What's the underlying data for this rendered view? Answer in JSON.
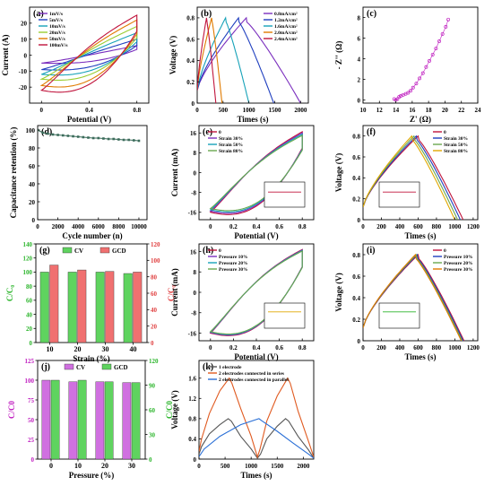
{
  "figure": {
    "colors": {
      "axis": "#000000",
      "frame": "#000000"
    }
  },
  "chart_data": [
    {
      "id": "a",
      "panel_label": "(a)",
      "type": "line",
      "xlabel": "Potential (V)",
      "ylabel": "Current (A)",
      "xlim": [
        -0.1,
        0.9
      ],
      "ylim": [
        -30,
        30
      ],
      "xticks": [
        0.0,
        0.4,
        0.8
      ],
      "yticks": [
        -20,
        -10,
        0,
        10,
        20
      ],
      "legend_position": "top-left",
      "series": [
        {
          "name": "1mV/s",
          "color": "#7b2fbe",
          "shape": "cv",
          "imax": 6,
          "imin": -5,
          "pinch": 0.7
        },
        {
          "name": "5mV/s",
          "color": "#1f3fbf",
          "shape": "cv",
          "imax": 10,
          "imin": -9,
          "pinch": 0.6
        },
        {
          "name": "10mV/s",
          "color": "#17a2b8",
          "shape": "cv",
          "imax": 14,
          "imin": -12,
          "pinch": 0.55
        },
        {
          "name": "20mV/s",
          "color": "#9acd32",
          "shape": "cv",
          "imax": 18,
          "imin": -15,
          "pinch": 0.5
        },
        {
          "name": "50mV/s",
          "color": "#e07b00",
          "shape": "cv",
          "imax": 22,
          "imin": -19,
          "pinch": 0.45
        },
        {
          "name": "100mV/s",
          "color": "#c0143c",
          "shape": "cv",
          "imax": 25,
          "imin": -22,
          "pinch": 0.4
        }
      ]
    },
    {
      "id": "b",
      "panel_label": "(b)",
      "type": "line",
      "xlabel": "Times (s)",
      "ylabel": "Voltage (V)",
      "xlim": [
        0,
        2150
      ],
      "ylim": [
        0,
        0.9
      ],
      "xticks": [
        0,
        500,
        1000,
        1500,
        2000
      ],
      "yticks": [
        0.0,
        0.2,
        0.4,
        0.6,
        0.8
      ],
      "legend_position": "top-right",
      "series": [
        {
          "name": "0.8mA/cm²",
          "color": "#7b2fbe",
          "shape": "gcd",
          "t_peak": 950,
          "t_end": 2000
        },
        {
          "name": "1.2mA/cm²",
          "color": "#1f3fbf",
          "shape": "gcd",
          "t_peak": 800,
          "t_end": 1480
        },
        {
          "name": "1.6mA/cm²",
          "color": "#17a2b8",
          "shape": "gcd",
          "t_peak": 550,
          "t_end": 1000
        },
        {
          "name": "2.0mA/cm²",
          "color": "#e07b00",
          "shape": "gcd",
          "t_peak": 280,
          "t_end": 480
        },
        {
          "name": "2.4mA/cm²",
          "color": "#c0143c",
          "shape": "gcd",
          "t_peak": 180,
          "t_end": 360
        }
      ]
    },
    {
      "id": "c",
      "panel_label": "(c)",
      "type": "scatter",
      "xlabel": "Z' (Ω)",
      "ylabel": "- Z'' (Ω)",
      "xlim": [
        10,
        24
      ],
      "ylim": [
        -0.3,
        9
      ],
      "xticks": [
        10,
        12,
        14,
        16,
        18,
        20,
        22,
        24
      ],
      "yticks": [
        0,
        2,
        4,
        6,
        8
      ],
      "series": [
        {
          "name": "",
          "color": "#c020c0",
          "marker": "circle",
          "points": [
            [
              13.8,
              0.1
            ],
            [
              14.0,
              0.0
            ],
            [
              14.2,
              0.1
            ],
            [
              14.4,
              0.3
            ],
            [
              14.6,
              0.4
            ],
            [
              14.9,
              0.5
            ],
            [
              15.2,
              0.6
            ],
            [
              15.5,
              0.7
            ],
            [
              15.8,
              0.9
            ],
            [
              16.1,
              1.2
            ],
            [
              16.5,
              1.6
            ],
            [
              16.9,
              2.1
            ],
            [
              17.3,
              2.6
            ],
            [
              17.7,
              3.2
            ],
            [
              18.1,
              3.8
            ],
            [
              18.5,
              4.4
            ],
            [
              18.9,
              5.0
            ],
            [
              19.3,
              5.7
            ],
            [
              19.7,
              6.4
            ],
            [
              20.1,
              7.1
            ],
            [
              20.4,
              7.8
            ]
          ]
        }
      ]
    },
    {
      "id": "d",
      "panel_label": "(d)",
      "type": "line",
      "xlabel": "Cycle number (n)",
      "ylabel": "Capacitance retention (%)",
      "xlim": [
        0,
        10800
      ],
      "ylim": [
        0,
        105
      ],
      "xticks": [
        0,
        2000,
        4000,
        6000,
        8000,
        10000
      ],
      "yticks": [
        0,
        20,
        40,
        60,
        80,
        100
      ],
      "series": [
        {
          "name": "",
          "color": "#3a6b5a",
          "marker": "square",
          "x": [
            0,
            500,
            1000,
            1500,
            2000,
            2500,
            3000,
            3500,
            4000,
            4500,
            5000,
            5500,
            6000,
            6500,
            7000,
            7500,
            8000,
            8500,
            9000,
            9500,
            10000
          ],
          "y": [
            100,
            97,
            96,
            95,
            94.5,
            94,
            93.5,
            93,
            92.5,
            92,
            91.5,
            91,
            91,
            90.5,
            90,
            90,
            89.5,
            89,
            89,
            88.5,
            88
          ]
        }
      ]
    },
    {
      "id": "e",
      "panel_label": "(e)",
      "type": "line",
      "xlabel": "Potential (V)",
      "ylabel": "Current (mA)",
      "xlim": [
        -0.1,
        0.9
      ],
      "ylim": [
        -19,
        19
      ],
      "xticks": [
        0.0,
        0.2,
        0.4,
        0.6,
        0.8
      ],
      "yticks": [
        -16,
        -8,
        0,
        8,
        16
      ],
      "legend_position": "top-left",
      "series": [
        {
          "name": "0",
          "color": "#c0143c",
          "shape": "cv",
          "imax": 16.5,
          "imin": -16,
          "pinch": 0.35
        },
        {
          "name": "Strain 30%",
          "color": "#7b2fbe",
          "shape": "cv",
          "imax": 16,
          "imin": -15.5,
          "pinch": 0.35
        },
        {
          "name": "Strain 50%",
          "color": "#17a2b8",
          "shape": "cv",
          "imax": 15.5,
          "imin": -15,
          "pinch": 0.35
        },
        {
          "name": "Strain 80%",
          "color": "#6aa84f",
          "shape": "cv",
          "imax": 15,
          "imin": -14.5,
          "pinch": 0.35
        }
      ],
      "inset": {
        "type": "line",
        "position": "bottom-right",
        "xlim": [
          0,
          90
        ],
        "ylim": [
          0,
          2
        ],
        "y": 1.2,
        "color": "#c0143c"
      }
    },
    {
      "id": "f",
      "panel_label": "(f)",
      "type": "line",
      "xlabel": "Times (s)",
      "ylabel": "Voltage (V)",
      "xlim": [
        0,
        1250
      ],
      "ylim": [
        0,
        0.9
      ],
      "xticks": [
        0,
        200,
        400,
        600,
        800,
        1000,
        1200
      ],
      "yticks": [
        0.0,
        0.2,
        0.4,
        0.6,
        0.8
      ],
      "legend_position": "top-right",
      "series": [
        {
          "name": "0",
          "color": "#c0143c",
          "shape": "gcd",
          "t_peak": 600,
          "t_end": 1090
        },
        {
          "name": "Strain 30%",
          "color": "#1f3fbf",
          "shape": "gcd",
          "t_peak": 580,
          "t_end": 1060
        },
        {
          "name": "Strain 50%",
          "color": "#6aa84f",
          "shape": "gcd",
          "t_peak": 555,
          "t_end": 1030
        },
        {
          "name": "Strain 80%",
          "color": "#e0a800",
          "shape": "gcd",
          "t_peak": 530,
          "t_end": 1000
        }
      ],
      "inset": {
        "type": "line",
        "position": "bottom-left",
        "xlim": [
          0,
          90
        ],
        "ylim": [
          0,
          2
        ],
        "y": 1.2,
        "color": "#c0143c"
      }
    },
    {
      "id": "g",
      "panel_label": "(g)",
      "type": "bar",
      "xlabel": "Strain (%)",
      "ylabel": "C/C₀",
      "ylabel_right": "C/C₀",
      "categories": [
        "10",
        "20",
        "30",
        "40"
      ],
      "ylim": [
        0,
        140
      ],
      "ylim_right": [
        0,
        120
      ],
      "yticks": [
        0,
        20,
        40,
        60,
        80,
        100,
        120,
        140
      ],
      "yticks_right": [
        0,
        20,
        40,
        60,
        80,
        100,
        120
      ],
      "left_axis_color": "#2bb52b",
      "right_axis_color": "#e04040",
      "legend_position": "top",
      "series": [
        {
          "name": "CV",
          "color": "#5fd35f",
          "values": [
            100,
            100,
            100,
            98
          ]
        },
        {
          "name": "GCD",
          "color": "#f07070",
          "values": [
            110,
            103,
            101,
            100
          ]
        }
      ]
    },
    {
      "id": "h",
      "panel_label": "(h)",
      "type": "line",
      "xlabel": "Potential (V)",
      "ylabel": "Current (mA)",
      "xlim": [
        -0.1,
        0.9
      ],
      "ylim": [
        -19,
        19
      ],
      "xticks": [
        0.0,
        0.2,
        0.4,
        0.6,
        0.8
      ],
      "yticks": [
        -16,
        -8,
        0,
        8,
        16
      ],
      "legend_position": "top-left",
      "series": [
        {
          "name": "0",
          "color": "#c0143c",
          "shape": "cv",
          "imax": 16.8,
          "imin": -16,
          "pinch": 0.3
        },
        {
          "name": "Pressure 10%",
          "color": "#7b2fbe",
          "shape": "cv",
          "imax": 16.6,
          "imin": -15.8,
          "pinch": 0.3
        },
        {
          "name": "Pressure 20%",
          "color": "#17a2b8",
          "shape": "cv",
          "imax": 16.4,
          "imin": -15.6,
          "pinch": 0.3
        },
        {
          "name": "Pressure 30%",
          "color": "#6aa84f",
          "shape": "cv",
          "imax": 16.2,
          "imin": -15.4,
          "pinch": 0.3
        }
      ],
      "inset": {
        "type": "line",
        "position": "bottom-right",
        "xlim": [
          0,
          90
        ],
        "ylim": [
          0,
          2
        ],
        "y": 1.3,
        "color": "#e0a800"
      }
    },
    {
      "id": "i",
      "panel_label": "(i)",
      "type": "line",
      "xlabel": "Times (s)",
      "ylabel": "Voltage (V)",
      "xlim": [
        0,
        1250
      ],
      "ylim": [
        0,
        0.9
      ],
      "xticks": [
        0,
        200,
        400,
        600,
        800,
        1000,
        1200
      ],
      "yticks": [
        0.0,
        0.2,
        0.4,
        0.6,
        0.8
      ],
      "legend_position": "top-right",
      "series": [
        {
          "name": "0",
          "color": "#c0143c",
          "shape": "gcd",
          "t_peak": 600,
          "t_end": 1100
        },
        {
          "name": "Pressure 10%",
          "color": "#1f3fbf",
          "shape": "gcd",
          "t_peak": 590,
          "t_end": 1090
        },
        {
          "name": "Pressure 20%",
          "color": "#6aa84f",
          "shape": "gcd",
          "t_peak": 580,
          "t_end": 1080
        },
        {
          "name": "Pressure 30%",
          "color": "#e07b00",
          "shape": "gcd",
          "t_peak": 570,
          "t_end": 1070
        }
      ],
      "inset": {
        "type": "line",
        "position": "bottom-left",
        "xlim": [
          0,
          90
        ],
        "ylim": [
          0,
          2
        ],
        "y": 1.3,
        "color": "#2bb52b"
      }
    },
    {
      "id": "j",
      "panel_label": "(j)",
      "type": "bar",
      "xlabel": "Pressure (%)",
      "ylabel": "C/C0",
      "ylabel_right": "C/C0",
      "categories": [
        "0",
        "10",
        "20",
        "30"
      ],
      "ylim": [
        0,
        125
      ],
      "ylim_right": [
        0,
        120
      ],
      "yticks": [
        0,
        25,
        50,
        75,
        100,
        125
      ],
      "yticks_right": [
        0,
        30,
        60,
        90,
        120
      ],
      "left_axis_color": "#c020c0",
      "right_axis_color": "#2bb52b",
      "legend_position": "top",
      "series": [
        {
          "name": "CV",
          "color": "#d070e0",
          "values": [
            100,
            98,
            98,
            97
          ]
        },
        {
          "name": "GCD",
          "color": "#5fd35f",
          "values": [
            100,
            100,
            98,
            97
          ]
        }
      ]
    },
    {
      "id": "k",
      "panel_label": "(k)",
      "type": "line",
      "xlabel": "Times (s)",
      "ylabel": "Voltage (V)",
      "xlim": [
        0,
        2200
      ],
      "ylim": [
        0,
        1.95
      ],
      "xticks": [
        0,
        500,
        1000,
        1500,
        2000
      ],
      "yticks": [
        0.0,
        0.4,
        0.8,
        1.2,
        1.6
      ],
      "legend_position": "top-left",
      "series": [
        {
          "name": "1 electrode",
          "color": "#555555",
          "points": [
            [
              0,
              0.1
            ],
            [
              50,
              0.25
            ],
            [
              200,
              0.5
            ],
            [
              400,
              0.68
            ],
            [
              560,
              0.8
            ],
            [
              620,
              0.75
            ],
            [
              800,
              0.45
            ],
            [
              1000,
              0.2
            ],
            [
              1120,
              0.02
            ],
            [
              1180,
              0.1
            ],
            [
              1300,
              0.4
            ],
            [
              1500,
              0.65
            ],
            [
              1660,
              0.8
            ],
            [
              1720,
              0.75
            ],
            [
              1900,
              0.45
            ],
            [
              2100,
              0.18
            ],
            [
              2200,
              0.02
            ]
          ]
        },
        {
          "name": "2 electrodes connected in series",
          "color": "#e05a20",
          "points": [
            [
              0,
              0.15
            ],
            [
              50,
              0.4
            ],
            [
              200,
              0.9
            ],
            [
              400,
              1.35
            ],
            [
              580,
              1.6
            ],
            [
              630,
              1.5
            ],
            [
              800,
              1.0
            ],
            [
              1000,
              0.45
            ],
            [
              1120,
              0.04
            ],
            [
              1170,
              0.2
            ],
            [
              1300,
              0.75
            ],
            [
              1500,
              1.25
            ],
            [
              1700,
              1.6
            ],
            [
              1750,
              1.5
            ],
            [
              1900,
              0.95
            ],
            [
              2100,
              0.35
            ],
            [
              2200,
              0.04
            ]
          ]
        },
        {
          "name": "2 electrodes connected in parallel",
          "color": "#2a6fd6",
          "points": [
            [
              0,
              0.05
            ],
            [
              100,
              0.2
            ],
            [
              400,
              0.45
            ],
            [
              800,
              0.68
            ],
            [
              1150,
              0.8
            ],
            [
              1200,
              0.76
            ],
            [
              1500,
              0.55
            ],
            [
              1800,
              0.32
            ],
            [
              2100,
              0.1
            ],
            [
              2200,
              0.02
            ]
          ]
        }
      ]
    }
  ]
}
